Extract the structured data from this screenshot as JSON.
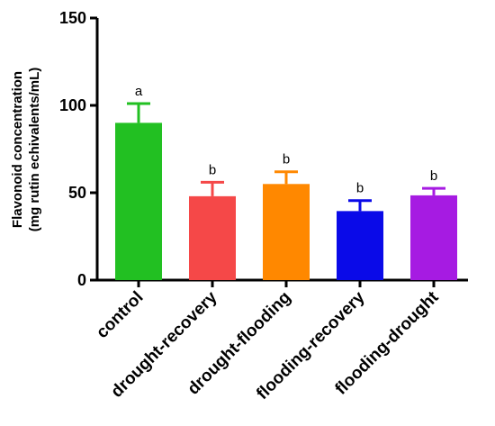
{
  "chart_data": {
    "type": "bar",
    "categories": [
      "control",
      "drought-recovery",
      "drought-flooding",
      "flooding-recovery",
      "flooding-drought"
    ],
    "values": [
      90,
      48,
      55,
      39.5,
      48.5
    ],
    "errors": [
      11,
      8,
      7,
      6,
      4
    ],
    "significance": [
      "a",
      "b",
      "b",
      "b",
      "b"
    ],
    "colors": [
      "#22c022",
      "#f54848",
      "#ff8800",
      "#0a0ae8",
      "#a61be2"
    ],
    "ylabel_line1": "Flavonoid concentration",
    "ylabel_line2": "(mg rutin echivalents/mL)",
    "xlabel": "",
    "ylim": [
      0,
      150
    ],
    "yticks": [
      0,
      50,
      100,
      150
    ],
    "grid": false,
    "legend": false
  }
}
